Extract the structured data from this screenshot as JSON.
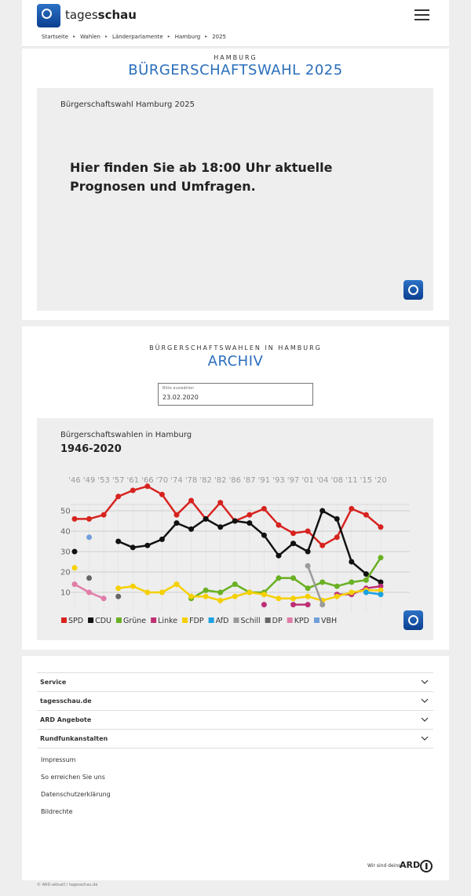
{
  "header": {
    "brand_prefix": "tages",
    "brand_suffix": "schau"
  },
  "breadcrumb": [
    "Startseite",
    "Wahlen",
    "Länderparlamente",
    "Hamburg",
    "2025"
  ],
  "election": {
    "kicker": "HAMBURG",
    "title": "BÜRGERSCHAFTSWAHL 2025",
    "box_title": "Bürgerschaftswahl Hamburg 2025",
    "message": "Hier finden Sie ab 18:00 Uhr aktuelle Prognosen und Umfragen."
  },
  "archive": {
    "kicker": "BÜRGERSCHAFTSWAHLEN IN HAMBURG",
    "title": "ARCHIV",
    "select_label": "Bitte auswählen",
    "select_value": "23.02.2020"
  },
  "chart_data": {
    "type": "line",
    "title": "Bürgerschaftswahlen in Hamburg",
    "subtitle": "1946-2020",
    "categories": [
      "'46",
      "'49",
      "'53",
      "'57",
      "'61",
      "'66",
      "'70",
      "'74",
      "'78",
      "'82",
      "'82",
      "'86",
      "'87",
      "'91",
      "'93",
      "'97",
      "'01",
      "'04",
      "'08",
      "'11",
      "'15",
      "'20"
    ],
    "ylim": [
      0,
      55
    ],
    "yticks": [
      10,
      20,
      30,
      40,
      50
    ],
    "grid": true,
    "legend": "bottom",
    "series": [
      {
        "name": "SPD",
        "color": "#d7231f",
        "values": [
          46,
          46,
          48,
          57,
          60,
          62,
          58,
          48,
          55,
          46,
          54,
          45,
          48,
          51,
          43,
          39,
          40,
          33,
          37,
          51,
          48,
          42
        ]
      },
      {
        "name": "CDU",
        "color": "#111111",
        "values": [
          30,
          null,
          null,
          35,
          32,
          33,
          36,
          44,
          41,
          46,
          42,
          45,
          44,
          38,
          28,
          34,
          30,
          50,
          46,
          25,
          19,
          15
        ]
      },
      {
        "name": "Grüne",
        "color": "#6ab023",
        "values": [
          null,
          null,
          null,
          null,
          null,
          null,
          null,
          null,
          7,
          11,
          10,
          14,
          10,
          10,
          17,
          17,
          12,
          15,
          13,
          15,
          16,
          27
        ]
      },
      {
        "name": "Linke",
        "color": "#be3075",
        "values": [
          null,
          null,
          null,
          null,
          null,
          null,
          null,
          null,
          null,
          null,
          null,
          null,
          null,
          4,
          null,
          4,
          4,
          null,
          9,
          9,
          12,
          13
        ]
      },
      {
        "name": "FDP",
        "color": "#f5d000",
        "values": [
          22,
          null,
          null,
          12,
          13,
          10,
          10,
          14,
          8,
          8,
          6,
          8,
          10,
          9,
          7,
          7,
          8,
          6,
          8,
          10,
          11,
          11
        ]
      },
      {
        "name": "AfD",
        "color": "#1ba1e2",
        "values": [
          null,
          null,
          null,
          null,
          null,
          null,
          null,
          null,
          null,
          null,
          null,
          null,
          null,
          null,
          null,
          null,
          null,
          null,
          null,
          null,
          10,
          9
        ]
      },
      {
        "name": "Schill",
        "color": "#9a9a9a",
        "values": [
          null,
          null,
          null,
          null,
          null,
          null,
          null,
          null,
          null,
          null,
          null,
          null,
          null,
          null,
          null,
          null,
          23,
          4,
          null,
          null,
          null,
          null
        ]
      },
      {
        "name": "DP",
        "color": "#666666",
        "values": [
          null,
          17,
          null,
          8,
          null,
          null,
          null,
          null,
          null,
          null,
          null,
          null,
          null,
          null,
          null,
          null,
          null,
          null,
          null,
          null,
          null,
          null
        ]
      },
      {
        "name": "KPD",
        "color": "#e07ca8",
        "values": [
          14,
          10,
          7,
          null,
          null,
          null,
          null,
          null,
          null,
          null,
          null,
          null,
          null,
          null,
          null,
          null,
          null,
          null,
          null,
          null,
          null,
          null
        ]
      },
      {
        "name": "VBH",
        "color": "#6f9fd8",
        "values": [
          null,
          37,
          null,
          null,
          null,
          null,
          null,
          null,
          null,
          null,
          null,
          null,
          null,
          null,
          null,
          null,
          null,
          null,
          null,
          null,
          null,
          null
        ]
      }
    ]
  },
  "footer": {
    "sections": [
      "Service",
      "tagesschau.de",
      "ARD Angebote",
      "Rundfunkanstalten"
    ],
    "links": [
      "Impressum",
      "So erreichen Sie uns",
      "Datenschutzerklärung",
      "Bildrechte"
    ],
    "slogan": "Wir sind deins.",
    "ard": "ARD",
    "copyright": "© ARD-aktuell / tagesschau.de"
  }
}
